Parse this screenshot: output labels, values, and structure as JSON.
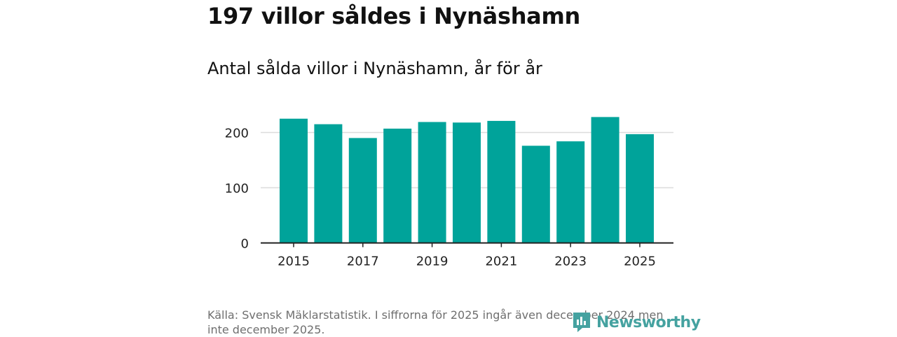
{
  "header": {
    "title": "197 villor såldes i Nynäshamn",
    "subtitle": "Antal sålda villor i Nynäshamn, år för år"
  },
  "chart_data": {
    "type": "bar",
    "title": "Antal sålda villor i Nynäshamn, år för år",
    "xlabel": "",
    "ylabel": "",
    "categories": [
      "2015",
      "2016",
      "2017",
      "2018",
      "2019",
      "2020",
      "2021",
      "2022",
      "2023",
      "2024",
      "2025"
    ],
    "values": [
      225,
      215,
      190,
      207,
      219,
      218,
      221,
      176,
      184,
      228,
      197
    ],
    "x_tick_labels": [
      "2015",
      "2017",
      "2019",
      "2021",
      "2023",
      "2025"
    ],
    "y_ticks": [
      0,
      100,
      200
    ],
    "ylim": [
      0,
      240
    ],
    "grid": true,
    "bar_color": "#00a39a"
  },
  "footer": {
    "source": "Källa: Svensk Mäklarstatistik. I siffrorna för 2025 ingår även december 2024 men inte december 2025.",
    "logo_text": "Newsworthy",
    "logo_color": "#45a2a0"
  }
}
